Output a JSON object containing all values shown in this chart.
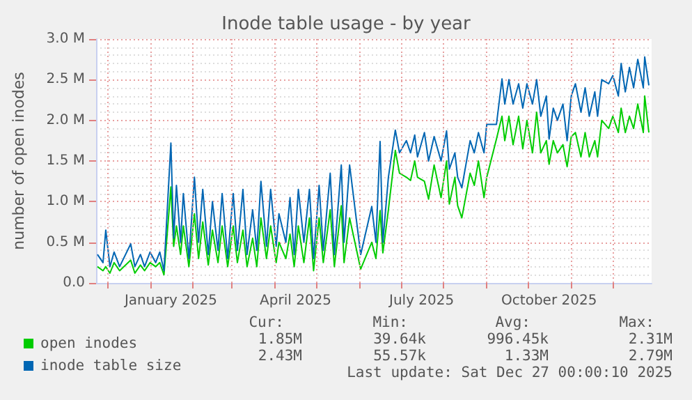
{
  "chart_data": {
    "type": "line",
    "title": "Inode table usage - by year",
    "ylabel": "number of open inodes",
    "x": [
      "2024-11-24",
      "2024-11-28",
      "2024-11-30",
      "2024-12-03",
      "2024-12-06",
      "2024-12-10",
      "2024-12-18",
      "2024-12-21",
      "2024-12-25",
      "2024-12-28",
      "2025-01-01",
      "2025-01-05",
      "2025-01-08",
      "2025-01-11",
      "2025-01-16",
      "2025-01-18",
      "2025-01-20",
      "2025-01-23",
      "2025-01-25",
      "2025-01-29",
      "2025-02-02",
      "2025-02-05",
      "2025-02-08",
      "2025-02-12",
      "2025-02-15",
      "2025-02-19",
      "2025-02-22",
      "2025-02-26",
      "2025-03-02",
      "2025-03-05",
      "2025-03-09",
      "2025-03-12",
      "2025-03-16",
      "2025-03-19",
      "2025-03-22",
      "2025-03-26",
      "2025-03-29",
      "2025-04-02",
      "2025-04-04",
      "2025-04-09",
      "2025-04-12",
      "2025-04-15",
      "2025-04-18",
      "2025-04-22",
      "2025-04-26",
      "2025-04-29",
      "2025-05-03",
      "2025-05-06",
      "2025-05-11",
      "2025-05-14",
      "2025-05-19",
      "2025-05-21",
      "2025-05-25",
      "2025-06-02",
      "2025-06-10",
      "2025-06-13",
      "2025-06-16",
      "2025-06-18",
      "2025-06-22",
      "2025-06-27",
      "2025-06-30",
      "2025-07-05",
      "2025-07-08",
      "2025-07-11",
      "2025-07-13",
      "2025-07-18",
      "2025-07-21",
      "2025-07-25",
      "2025-07-30",
      "2025-08-03",
      "2025-08-05",
      "2025-08-09",
      "2025-08-11",
      "2025-08-14",
      "2025-08-20",
      "2025-08-23",
      "2025-08-26",
      "2025-08-30",
      "2025-09-01",
      "2025-09-08",
      "2025-09-12",
      "2025-09-14",
      "2025-09-17",
      "2025-09-20",
      "2025-09-24",
      "2025-09-27",
      "2025-09-30",
      "2025-10-04",
      "2025-10-07",
      "2025-10-10",
      "2025-10-14",
      "2025-10-16",
      "2025-10-19",
      "2025-10-22",
      "2025-10-26",
      "2025-10-29",
      "2025-11-01",
      "2025-11-04",
      "2025-11-08",
      "2025-11-11",
      "2025-11-14",
      "2025-11-18",
      "2025-11-20",
      "2025-11-23",
      "2025-11-28",
      "2025-12-01",
      "2025-12-05",
      "2025-12-07",
      "2025-12-10",
      "2025-12-13",
      "2025-12-16",
      "2025-12-19",
      "2025-12-23",
      "2025-12-24",
      "2025-12-27"
    ],
    "series": [
      {
        "name": "open inodes",
        "color": "#00cc00",
        "values": [
          200000,
          150000,
          200000,
          120000,
          250000,
          150000,
          280000,
          120000,
          220000,
          150000,
          250000,
          200000,
          250000,
          100000,
          1180000,
          450000,
          700000,
          350000,
          700000,
          200000,
          850000,
          300000,
          750000,
          220000,
          650000,
          250000,
          700000,
          200000,
          700000,
          250000,
          650000,
          200000,
          550000,
          200000,
          800000,
          300000,
          700000,
          250000,
          500000,
          300000,
          600000,
          200000,
          700000,
          250000,
          800000,
          150000,
          800000,
          250000,
          900000,
          200000,
          950000,
          250000,
          800000,
          170000,
          500000,
          300000,
          890000,
          370000,
          900000,
          1630000,
          1350000,
          1300000,
          1260000,
          1500000,
          1300000,
          1250000,
          1030000,
          1450000,
          1050000,
          1500000,
          970000,
          1300000,
          950000,
          800000,
          1350000,
          1200000,
          1500000,
          1050000,
          1300000,
          1770000,
          2050000,
          1750000,
          2050000,
          1700000,
          2050000,
          1650000,
          2000000,
          1600000,
          2100000,
          1600000,
          1750000,
          1460000,
          1750000,
          1600000,
          1700000,
          1430000,
          1800000,
          1850000,
          1550000,
          1850000,
          1550000,
          1750000,
          1550000,
          2000000,
          1900000,
          2050000,
          1850000,
          2150000,
          1850000,
          2050000,
          1900000,
          2200000,
          1850000,
          2300000,
          1850000
        ]
      },
      {
        "name": "inode table size",
        "color": "#0066b3",
        "values": [
          350000,
          250000,
          650000,
          200000,
          380000,
          200000,
          480000,
          200000,
          350000,
          200000,
          380000,
          250000,
          380000,
          150000,
          1720000,
          550000,
          1200000,
          500000,
          1100000,
          300000,
          1300000,
          500000,
          1150000,
          350000,
          1000000,
          400000,
          1100000,
          300000,
          1100000,
          400000,
          1150000,
          350000,
          900000,
          400000,
          1250000,
          450000,
          1150000,
          450000,
          850000,
          500000,
          1050000,
          350000,
          1150000,
          500000,
          1150000,
          300000,
          1200000,
          400000,
          1350000,
          350000,
          1450000,
          500000,
          1450000,
          350000,
          940000,
          500000,
          1740000,
          500000,
          1300000,
          1880000,
          1600000,
          1750000,
          1600000,
          1820000,
          1550000,
          1850000,
          1500000,
          1800000,
          1500000,
          1870000,
          1400000,
          1600000,
          1300000,
          1170000,
          1750000,
          1600000,
          1850000,
          1600000,
          1950000,
          1950000,
          2510000,
          2200000,
          2500000,
          2200000,
          2450000,
          2150000,
          2450000,
          2200000,
          2500000,
          2050000,
          2300000,
          1770000,
          2150000,
          2000000,
          2200000,
          1750000,
          2300000,
          2450000,
          2100000,
          2400000,
          2050000,
          2350000,
          2050000,
          2500000,
          2450000,
          2550000,
          2300000,
          2700000,
          2350000,
          2650000,
          2400000,
          2750000,
          2400000,
          2780000,
          2430000
        ]
      }
    ],
    "xlim": [
      "2024-11-23",
      "2025-12-29"
    ],
    "xticks": [
      {
        "value": "2024-12-01",
        "label": null
      },
      {
        "value": "2025-01-01",
        "label": null
      },
      {
        "value": "2025-01-16",
        "label": "January 2025"
      },
      {
        "value": "2025-02-01",
        "label": null
      },
      {
        "value": "2025-03-01",
        "label": null
      },
      {
        "value": "2025-04-01",
        "label": null
      },
      {
        "value": "2025-04-16",
        "label": "April 2025"
      },
      {
        "value": "2025-05-01",
        "label": null
      },
      {
        "value": "2025-06-01",
        "label": null
      },
      {
        "value": "2025-07-01",
        "label": null
      },
      {
        "value": "2025-07-16",
        "label": "July 2025"
      },
      {
        "value": "2025-08-01",
        "label": null
      },
      {
        "value": "2025-09-01",
        "label": null
      },
      {
        "value": "2025-10-01",
        "label": null
      },
      {
        "value": "2025-10-16",
        "label": "October 2025"
      },
      {
        "value": "2025-11-01",
        "label": null
      },
      {
        "value": "2025-12-01",
        "label": null
      }
    ],
    "ylim": [
      0,
      3000000
    ],
    "yticks": [
      {
        "value": 0,
        "label": "0.0"
      },
      {
        "value": 500000,
        "label": "0.5 M"
      },
      {
        "value": 1000000,
        "label": "1.0 M"
      },
      {
        "value": 1500000,
        "label": "1.5 M"
      },
      {
        "value": 2000000,
        "label": "2.0 M"
      },
      {
        "value": 2500000,
        "label": "2.5 M"
      },
      {
        "value": 3000000,
        "label": "3.0 M"
      }
    ],
    "grid": true,
    "legend": "bottom left",
    "marker": "none",
    "line_style": "solid",
    "annotations": [
      "Cur:",
      "Min:",
      "Avg:",
      "Max:",
      "1.85M",
      "39.64k",
      "996.45k",
      "2.31M",
      "2.43M",
      "55.57k",
      "1.33M",
      "2.79M",
      "Last update: Sat Dec 27 00:00:10 2025"
    ]
  }
}
